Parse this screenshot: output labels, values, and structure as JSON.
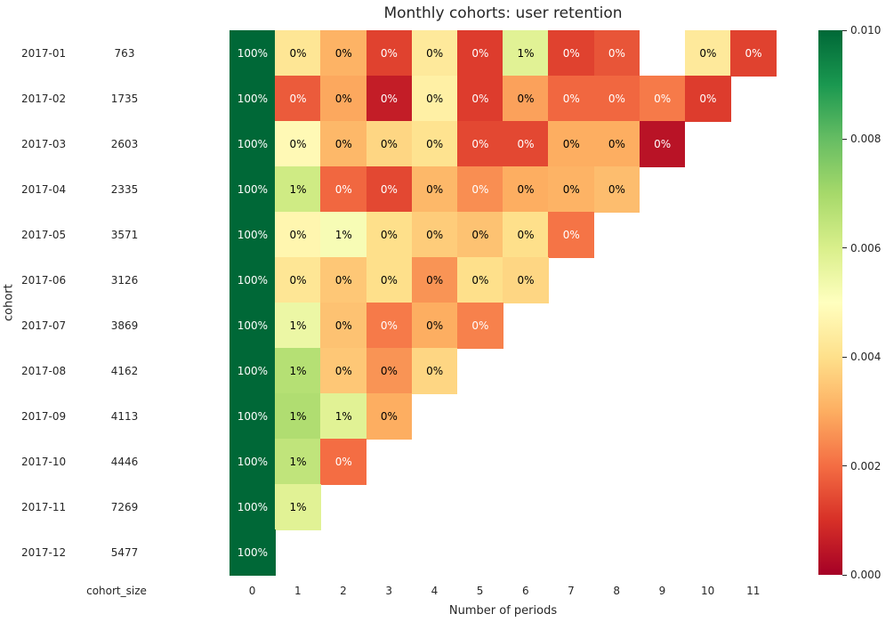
{
  "chart_data": {
    "type": "heatmap",
    "title": "Monthly cohorts: user retention",
    "xlabel": "Number of periods",
    "ylabel": "cohort",
    "row_header_label": "cohort_size",
    "colormap": "RdYlGn",
    "vmin": 0.0,
    "vmax": 0.01,
    "annotation_format": "percent_rounded",
    "legend_position": "right-colorbar",
    "grid": false,
    "periods": [
      0,
      1,
      2,
      3,
      4,
      5,
      6,
      7,
      8,
      9,
      10,
      11
    ],
    "colorbar_ticks": [
      "0.010",
      "0.008",
      "0.006",
      "0.004",
      "0.002",
      "0.000"
    ],
    "colormap_stops": [
      "#a50026",
      "#d73027",
      "#f46d43",
      "#fdae61",
      "#fee08b",
      "#ffffbf",
      "#d9ef8b",
      "#a6d96a",
      "#66bd63",
      "#1a9850",
      "#006837"
    ],
    "text_color_dark": "#000000",
    "text_color_light": "#ffffff",
    "cohorts": [
      {
        "label": "2017-01",
        "size": 763,
        "values": [
          1.0,
          0.0042,
          0.0031,
          0.0013,
          0.0043,
          0.0012,
          0.0058,
          0.0013,
          0.0016,
          null,
          0.0043,
          0.0013
        ]
      },
      {
        "label": "2017-02",
        "size": 1735,
        "values": [
          1.0,
          0.0017,
          0.0029,
          0.0006,
          0.0045,
          0.0012,
          0.0028,
          0.0019,
          0.0019,
          0.0022,
          0.0012
        ]
      },
      {
        "label": "2017-03",
        "size": 2603,
        "values": [
          1.0,
          0.0048,
          0.0032,
          0.0038,
          0.0041,
          0.0014,
          0.0014,
          0.003,
          0.003,
          0.0004
        ]
      },
      {
        "label": "2017-04",
        "size": 2335,
        "values": [
          1.0,
          0.0062,
          0.0019,
          0.0014,
          0.0032,
          0.0025,
          0.003,
          0.0031,
          0.0033
        ]
      },
      {
        "label": "2017-05",
        "size": 3571,
        "values": [
          1.0,
          0.0047,
          0.0052,
          0.004,
          0.0036,
          0.0034,
          0.004,
          0.0021
        ]
      },
      {
        "label": "2017-06",
        "size": 3126,
        "values": [
          1.0,
          0.0042,
          0.0035,
          0.004,
          0.0026,
          0.004,
          0.0038
        ]
      },
      {
        "label": "2017-07",
        "size": 3869,
        "values": [
          1.0,
          0.0055,
          0.0034,
          0.0022,
          0.003,
          0.0023
        ]
      },
      {
        "label": "2017-08",
        "size": 4162,
        "values": [
          1.0,
          0.0067,
          0.0035,
          0.0026,
          0.0038
        ]
      },
      {
        "label": "2017-09",
        "size": 4113,
        "values": [
          1.0,
          0.0068,
          0.0058,
          0.003
        ]
      },
      {
        "label": "2017-10",
        "size": 4446,
        "values": [
          1.0,
          0.0065,
          0.002
        ]
      },
      {
        "label": "2017-11",
        "size": 7269,
        "values": [
          1.0,
          0.0058
        ]
      },
      {
        "label": "2017-12",
        "size": 5477,
        "values": [
          1.0
        ]
      }
    ]
  }
}
